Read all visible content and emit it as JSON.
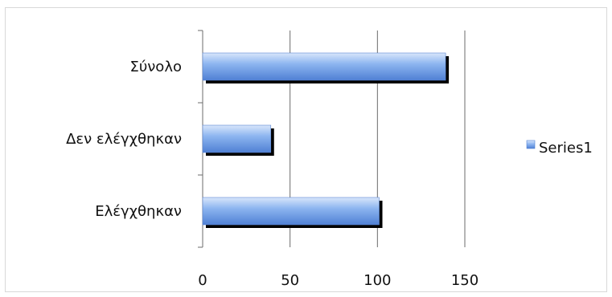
{
  "chart_data": {
    "type": "bar",
    "orientation": "horizontal",
    "categories": [
      "Σύνολο",
      "Δεν ελέγχθηκαν",
      "Ελέγχθηκαν"
    ],
    "series": [
      {
        "name": "Series1",
        "values": [
          139,
          39,
          101
        ],
        "color": "#6f9ee8"
      }
    ],
    "xlim": [
      0,
      150
    ],
    "x_ticks": [
      "0",
      "50",
      "100",
      "150"
    ],
    "grid": true,
    "legend": "right"
  }
}
